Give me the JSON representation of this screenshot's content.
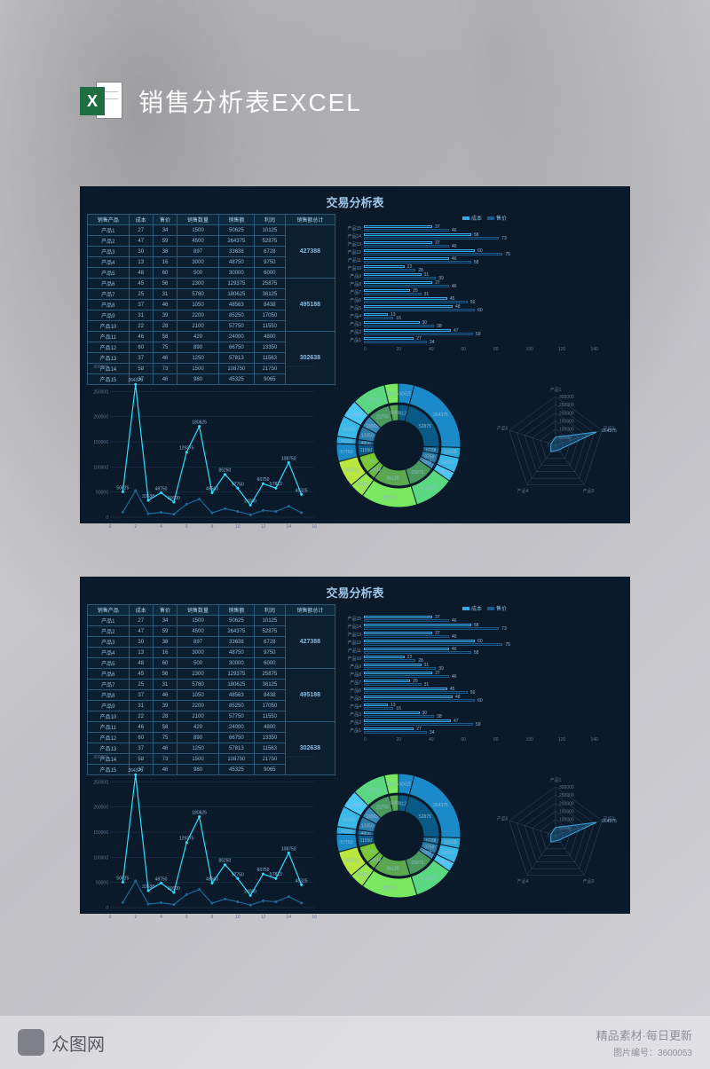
{
  "header": {
    "title": "销售分析表EXCEL",
    "icon_letter": "X"
  },
  "panel": {
    "title": "交易分析表",
    "table": {
      "columns": [
        "销售产品",
        "成本",
        "售价",
        "销售数量",
        "销售额",
        "利润",
        "销售额总计"
      ],
      "rows": [
        [
          "产品1",
          "27",
          "34",
          "1500",
          "50625",
          "10125"
        ],
        [
          "产品2",
          "47",
          "59",
          "4500",
          "264375",
          "52875"
        ],
        [
          "产品3",
          "30",
          "38",
          "897",
          "33638",
          "6728"
        ],
        [
          "产品4",
          "13",
          "16",
          "3000",
          "48750",
          "9750"
        ],
        [
          "产品5",
          "48",
          "60",
          "500",
          "30000",
          "6000"
        ],
        [
          "产品6",
          "45",
          "56",
          "2300",
          "129375",
          "25875"
        ],
        [
          "产品7",
          "25",
          "31",
          "5780",
          "180625",
          "36125"
        ],
        [
          "产品8",
          "37",
          "46",
          "1050",
          "48563",
          "8438"
        ],
        [
          "产品9",
          "31",
          "39",
          "2200",
          "85250",
          "17050"
        ],
        [
          "产品10",
          "22",
          "28",
          "2100",
          "57750",
          "11550"
        ],
        [
          "产品11",
          "46",
          "58",
          "420",
          "24000",
          "4800"
        ],
        [
          "产品12",
          "60",
          "75",
          "890",
          "66750",
          "13350"
        ],
        [
          "产品13",
          "37",
          "46",
          "1250",
          "57813",
          "11563"
        ],
        [
          "产品14",
          "58",
          "73",
          "1500",
          "108750",
          "21750"
        ],
        [
          "产品15",
          "37",
          "46",
          "980",
          "45325",
          "9065"
        ]
      ],
      "sums": [
        {
          "value": "427388",
          "span": 5
        },
        {
          "value": "495188",
          "span": 5
        },
        {
          "value": "302638",
          "span": 5
        }
      ]
    },
    "barchart": {
      "legend": [
        {
          "label": "成本",
          "color": "#3aa8e8"
        },
        {
          "label": "售价",
          "color": "#1a5a8a"
        }
      ],
      "xmax": 140,
      "xticks": [
        0,
        20,
        40,
        60,
        80,
        100,
        120,
        140
      ],
      "items": [
        {
          "label": "产品15",
          "a": 37,
          "b": 46
        },
        {
          "label": "产品14",
          "a": 58,
          "b": 73
        },
        {
          "label": "产品13",
          "a": 37,
          "b": 46
        },
        {
          "label": "产品12",
          "a": 60,
          "b": 75
        },
        {
          "label": "产品11",
          "a": 46,
          "b": 58
        },
        {
          "label": "产品10",
          "a": 22,
          "b": 28
        },
        {
          "label": "产品9",
          "a": 31,
          "b": 39
        },
        {
          "label": "产品8",
          "a": 37,
          "b": 46
        },
        {
          "label": "产品7",
          "a": 25,
          "b": 31
        },
        {
          "label": "产品6",
          "a": 45,
          "b": 56
        },
        {
          "label": "产品5",
          "a": 48,
          "b": 60
        },
        {
          "label": "产品4",
          "a": 13,
          "b": 16
        },
        {
          "label": "产品3",
          "a": 30,
          "b": 38
        },
        {
          "label": "产品2",
          "a": 47,
          "b": 59
        },
        {
          "label": "产品1",
          "a": 27,
          "b": 34
        }
      ]
    },
    "linechart": {
      "ymax": 300000,
      "yticks": [
        0,
        50000,
        100000,
        150000,
        200000,
        250000,
        300000
      ],
      "xticks": [
        0,
        2,
        4,
        6,
        8,
        10,
        12,
        14,
        16
      ],
      "series": [
        {
          "color": "#2de0ff",
          "values": [
            50625,
            264375,
            33638,
            48750,
            30000,
            129375,
            180625,
            48563,
            85250,
            57750,
            24000,
            66750,
            57813,
            108750,
            45325
          ]
        },
        {
          "color": "#1a6a9a",
          "values": [
            10125,
            52875,
            6728,
            9750,
            6000,
            25875,
            36125,
            8438,
            17050,
            11550,
            4800,
            13350,
            11563,
            21750,
            9065
          ]
        }
      ],
      "labels": [
        "50625",
        "264375",
        "33638",
        "48750",
        "30000",
        "129375",
        "180625",
        "48563",
        "85250",
        "57750",
        "24000",
        "66750",
        "57813",
        "108750",
        "45325"
      ],
      "line_width": 1.2
    },
    "donutchart": {
      "outer": {
        "slices": [
          50625,
          264375,
          33638,
          48750,
          30000,
          129375,
          180625,
          48563,
          85250,
          57750,
          24000,
          66750,
          57813,
          108750,
          45325
        ],
        "colors": [
          "#1a8ac8",
          "#1a8ac8",
          "#2aa8d8",
          "#3ab8e8",
          "#4ac8f8",
          "#5ad880",
          "#7ae860",
          "#9ae850",
          "#b8e840",
          "#1a8ac8",
          "#2aa8d8",
          "#3ab8e8",
          "#4ac8f8",
          "#5ad880",
          "#7ae860"
        ]
      },
      "inner": {
        "slices": [
          10125,
          52875,
          6728,
          9750,
          6000,
          25875,
          36125,
          8438,
          17050,
          11550,
          4800,
          13350,
          11563,
          21750,
          9065
        ],
        "colors": [
          "#0a5a88",
          "#0a5a88",
          "#1a6a98",
          "#2a7aa8",
          "#3a8ab8",
          "#4a9a60",
          "#5aa850",
          "#6ab840",
          "#7ac830",
          "#0a5a88",
          "#1a6a98",
          "#2a7aa8",
          "#3a8ab8",
          "#4a9a60",
          "#5aa850"
        ]
      },
      "background": "#0a1a2a"
    },
    "radarchart": {
      "axes": 5,
      "rings": [
        50000,
        100000,
        150000,
        200000,
        250000,
        300000
      ],
      "labels": [
        "产品1",
        "产品2",
        "产品3",
        "产品4",
        "产品5"
      ],
      "value_point": {
        "label": "264375",
        "axis": 1
      },
      "line_color": "#3aa8e8",
      "grid_color": "#3a5a70"
    }
  },
  "watermark": {
    "brand": "众图网",
    "tagline": "精品素材·每日更新",
    "id_label": "图片编号：",
    "id_value": "3600053"
  },
  "colors": {
    "panel_bg": "#0a1a2a",
    "text": "#8fb8d8",
    "border": "#2a5a7a",
    "accent": "#2de0ff"
  }
}
